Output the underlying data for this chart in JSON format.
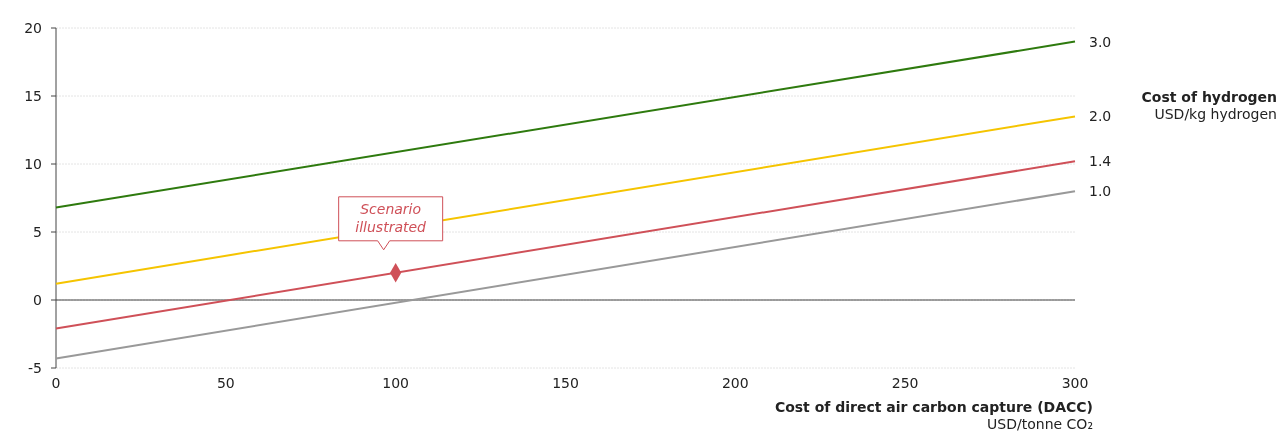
{
  "chart_data": {
    "type": "line",
    "xlabel": "Cost of direct air carbon capture (DACC)\nUSD/tonne CO₂",
    "legend_title": "Cost of hydrogen\nUSD/kg hydrogen",
    "legend": "right",
    "grid": "y",
    "marker": "none",
    "line_style": "solid",
    "xlim": [
      0,
      300
    ],
    "xticks": [
      0,
      50,
      100,
      150,
      200,
      250,
      300
    ],
    "ylim": [
      -5,
      20
    ],
    "yticks": [
      -5,
      0,
      5,
      10,
      15,
      20
    ],
    "series": [
      {
        "name": "3.0",
        "color": "#2e7a0e",
        "x": [
          0,
          300
        ],
        "values": [
          6.8,
          19.0
        ]
      },
      {
        "name": "2.0",
        "color": "#f5c400",
        "x": [
          0,
          300
        ],
        "values": [
          1.2,
          13.5
        ]
      },
      {
        "name": "1.4",
        "color": "#cf5058",
        "x": [
          0,
          300
        ],
        "values": [
          -2.1,
          10.2
        ]
      },
      {
        "name": "1.0",
        "color": "#999999",
        "x": [
          0,
          300
        ],
        "values": [
          -4.3,
          8.0
        ]
      },
      {
        "type": "scatter",
        "marker": "diamond",
        "color": "#cf5058",
        "x": [
          100
        ],
        "values": [
          2.0
        ]
      }
    ],
    "ref_lines": [
      {
        "axis": "y",
        "value": 0,
        "color": "#444444"
      }
    ],
    "annotations": [
      {
        "text": "Scenario illustrated",
        "x": 100,
        "y": 2.0
      }
    ]
  }
}
